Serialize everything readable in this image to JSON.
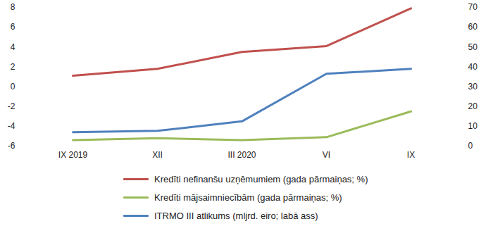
{
  "chart_data": {
    "type": "line",
    "categories": [
      "IX 2019",
      "XII",
      "III 2020",
      "VI",
      "IX"
    ],
    "series": [
      {
        "name": "Kredīti nefinanšu uzņēmumiem (gada pārmaiņas; %)",
        "color": "#c0504d",
        "values": [
          1.1,
          1.8,
          3.5,
          4.1,
          7.9
        ]
      },
      {
        "name": "Kredīti mājsaimniecībām (gada pārmaiņas; %)",
        "color": "#9bbb59",
        "values": [
          -5.4,
          -5.2,
          -5.4,
          -5.1,
          -2.5
        ]
      },
      {
        "name": "ITRMO III atlikums (mljrd. eiro; labā ass)",
        "color": "#4f81bd",
        "values": [
          7,
          7.7,
          12.5,
          36.5,
          39
        ],
        "axis": "y2"
      }
    ],
    "ylim": [
      -6,
      8
    ],
    "yticks": [
      -6,
      -4,
      -2,
      0,
      2,
      4,
      6,
      8
    ],
    "y2lim": [
      0,
      70
    ],
    "y2ticks": [
      0,
      10,
      20,
      30,
      40,
      50,
      60,
      70
    ],
    "grid": false,
    "legend": "bottom"
  }
}
